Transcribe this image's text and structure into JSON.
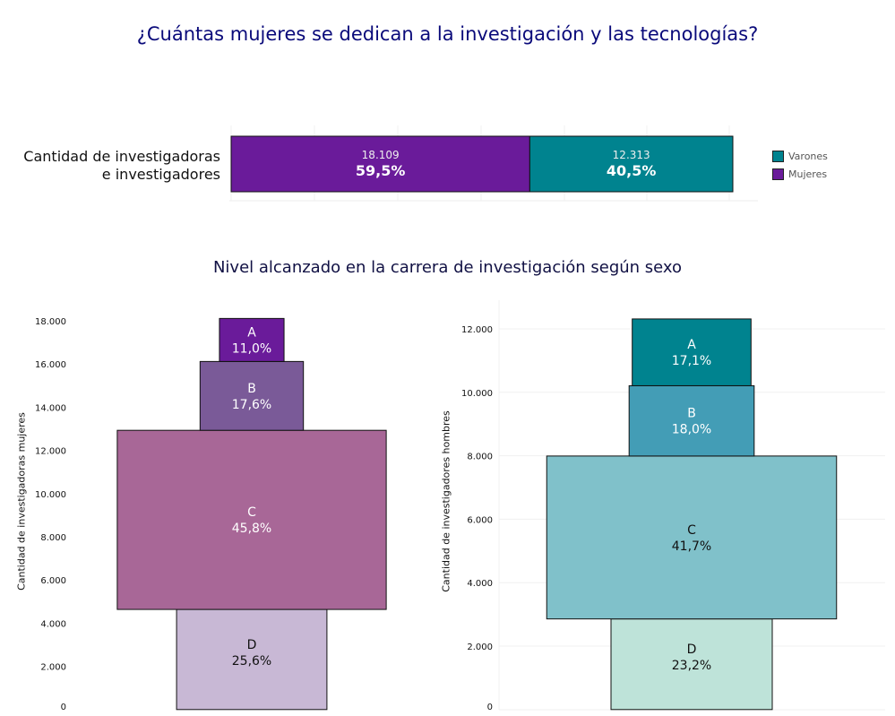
{
  "title": "¿Cuántas mujeres se dedican a la investigación y las tecnologías?",
  "chart_data": [
    {
      "type": "bar",
      "orientation": "horizontal-stacked",
      "categories": [
        "Cantidad de investigadoras e investigadores"
      ],
      "category_lines": [
        "Cantidad de investigadoras",
        "e investigadores"
      ],
      "series": [
        {
          "name": "Mujeres",
          "values": [
            18109
          ],
          "value_label": "18.109",
          "pct_label": "59,5%",
          "color": "#6a1b9a"
        },
        {
          "name": "Varones",
          "values": [
            12313
          ],
          "value_label": "12.313",
          "pct_label": "40,5%",
          "color": "#00838f"
        }
      ],
      "legend": [
        {
          "name": "Varones",
          "color": "#00838f"
        },
        {
          "name": "Mujeres",
          "color": "#6a1b9a"
        }
      ],
      "legend_position": "right",
      "xlim": [
        0,
        30422
      ]
    },
    {
      "type": "bar",
      "subtype": "funnel-stacked",
      "title": "Nivel alcanzado en la carrera de investigación según sexo",
      "ylabel": "Cantidad de investigadoras mujeres",
      "ylim": [
        0,
        18000
      ],
      "yticks": [
        "0",
        "2.000",
        "4.000",
        "6.000",
        "8.000",
        "10.000",
        "12.000",
        "14.000",
        "16.000",
        "18.000"
      ],
      "ytick_values": [
        0,
        2000,
        4000,
        6000,
        8000,
        10000,
        12000,
        14000,
        16000,
        18000
      ],
      "segments": [
        {
          "label": "D",
          "pct": "25,6%",
          "value": 4636,
          "color": "#c8b8d5",
          "text_color": "#111"
        },
        {
          "label": "C",
          "pct": "45,8%",
          "value": 8294,
          "color": "#a86797",
          "text_color": "#fff"
        },
        {
          "label": "B",
          "pct": "17,6%",
          "value": 3187,
          "color": "#7a5a98",
          "text_color": "#fff"
        },
        {
          "label": "A",
          "pct": "11,0%",
          "value": 1992,
          "color": "#6a1b9a",
          "text_color": "#fff"
        }
      ]
    },
    {
      "type": "bar",
      "subtype": "funnel-stacked",
      "ylabel": "Cantidad de investigadores hombres",
      "ylim": [
        0,
        12313
      ],
      "yticks": [
        "0",
        "2.000",
        "4.000",
        "6.000",
        "8.000",
        "10.000",
        "12.000"
      ],
      "ytick_values": [
        0,
        2000,
        4000,
        6000,
        8000,
        10000,
        12000
      ],
      "segments": [
        {
          "label": "D",
          "pct": "23,2%",
          "value": 2857,
          "color": "#bee3d9",
          "text_color": "#111"
        },
        {
          "label": "C",
          "pct": "41,7%",
          "value": 5135,
          "color": "#80c1ca",
          "text_color": "#111"
        },
        {
          "label": "B",
          "pct": "18,0%",
          "value": 2216,
          "color": "#439db6",
          "text_color": "#fff"
        },
        {
          "label": "A",
          "pct": "17,1%",
          "value": 2105,
          "color": "#00838f",
          "text_color": "#fff"
        }
      ]
    }
  ]
}
